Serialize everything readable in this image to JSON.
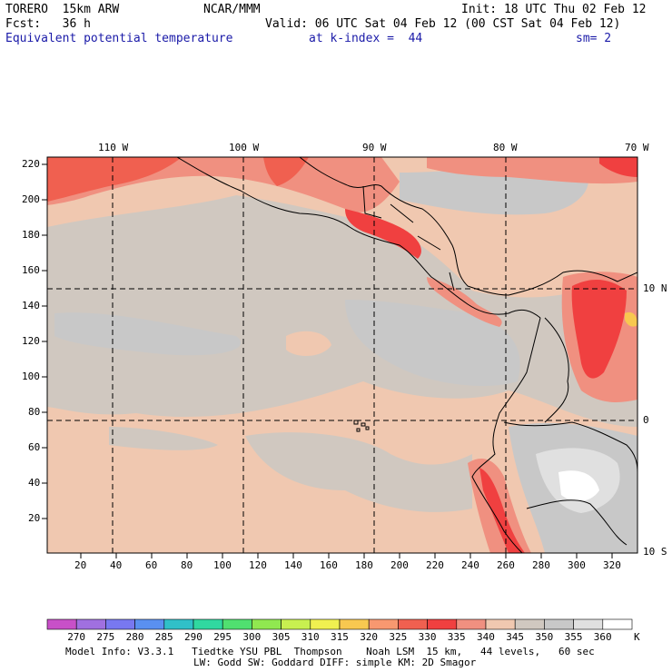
{
  "header": {
    "model": "TORERO  15km ARW",
    "org": "NCAR/MMM",
    "init": "Init: 18 UTC Thu 02 Feb 12",
    "fcst": "Fcst:   36 h",
    "valid": "Valid: 06 UTC Sat 04 Feb 12 (00 CST Sat 04 Feb 12)",
    "field": "Equivalent potential temperature",
    "level": "at k-index =  44",
    "smooth": "sm= 2"
  },
  "map": {
    "lon_labels": [
      "110 W",
      "100 W",
      "90 W",
      "80 W",
      "70 W"
    ],
    "lat_labels": [
      "10 N",
      "0",
      "10 S"
    ],
    "y_ticks": [
      "220",
      "200",
      "180",
      "160",
      "140",
      "120",
      "100",
      "80",
      "60",
      "40",
      "20"
    ],
    "x_ticks": [
      "20",
      "40",
      "60",
      "80",
      "100",
      "120",
      "140",
      "160",
      "180",
      "200",
      "220",
      "240",
      "260",
      "280",
      "300",
      "320"
    ]
  },
  "colorbar": {
    "unit": "K",
    "levels": [
      "270",
      "275",
      "280",
      "285",
      "290",
      "295",
      "300",
      "305",
      "310",
      "315",
      "320",
      "325",
      "330",
      "335",
      "340",
      "345",
      "350",
      "355",
      "360"
    ],
    "colors": [
      "#c850c8",
      "#a070e0",
      "#7878f0",
      "#5a90f0",
      "#30c0c8",
      "#30d8a0",
      "#50e070",
      "#90e850",
      "#c8f050",
      "#f0f050",
      "#f8c850",
      "#f89870",
      "#f06050",
      "#f04040",
      "#f09080",
      "#f0c8b0",
      "#d0c8c0",
      "#c8c8c8",
      "#e0e0e0",
      "#ffffff"
    ]
  },
  "footer": {
    "line1": "Model Info: V3.3.1   Tiedtke YSU PBL  Thompson    Noah LSM  15 km,   44 levels,   60 sec",
    "line2": "LW: Godd SW: Goddard DIFF: simple KM: 2D Smagor"
  }
}
